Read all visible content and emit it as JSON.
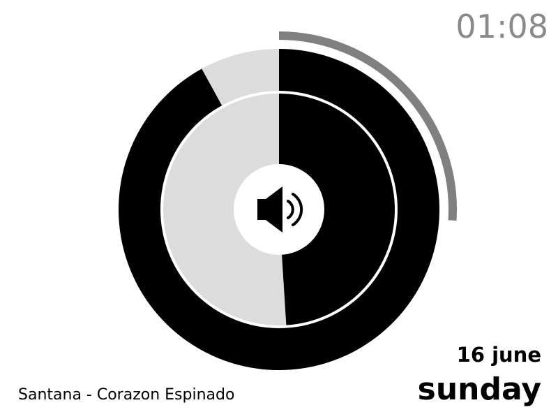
{
  "clock": {
    "time": "01:08"
  },
  "now_playing": {
    "track": "Santana - Corazon Espinado"
  },
  "date": {
    "day_month": "16 june",
    "weekday": "sunday"
  },
  "dial": {
    "outer_ring_fraction": 0.92,
    "inner_disc_fraction": 0.49,
    "arc_indicator_fraction": 0.26,
    "center_icon": "speaker-volume-icon"
  },
  "colors": {
    "filled": "#000000",
    "empty": "#dcdcdc",
    "arc_indicator": "#808080",
    "clock_text": "#8a8a8a",
    "background": "#ffffff"
  }
}
